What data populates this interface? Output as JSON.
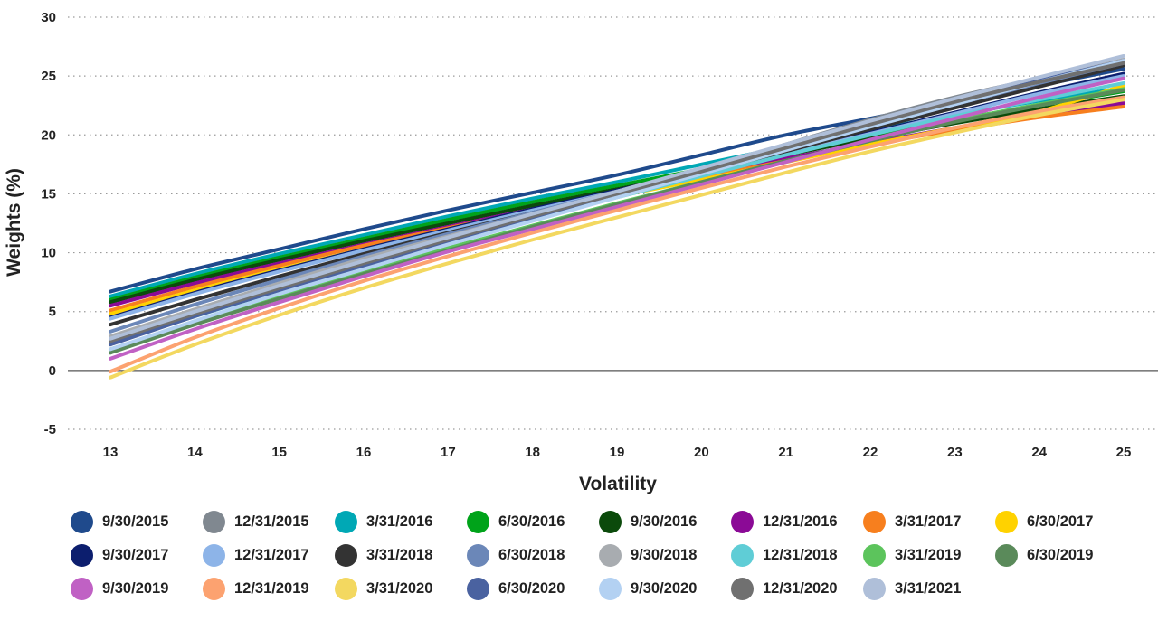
{
  "chart_data": {
    "type": "line",
    "xlabel": "Volatility",
    "ylabel": "Weights (%)",
    "xlim": [
      13,
      25
    ],
    "ylim": [
      -5,
      30
    ],
    "x_ticks": [
      13,
      14,
      15,
      16,
      17,
      18,
      19,
      20,
      21,
      22,
      23,
      24,
      25
    ],
    "y_ticks": [
      30,
      25,
      20,
      15,
      10,
      5,
      0,
      -5
    ],
    "grid": "horizontal-dotted",
    "legend_position": "bottom",
    "x": [
      13,
      14,
      15,
      16,
      17,
      18,
      19,
      20,
      21,
      22,
      23,
      24,
      25
    ],
    "series": [
      {
        "name": "9/30/2015",
        "color": "#1f4a8c",
        "values": [
          6.7,
          8.6,
          10.3,
          12.0,
          13.6,
          15.1,
          16.6,
          18.3,
          20.0,
          21.4,
          22.8,
          24.2,
          25.6
        ]
      },
      {
        "name": "12/31/2015",
        "color": "#808890",
        "values": [
          2.6,
          4.9,
          7.1,
          9.2,
          11.2,
          13.2,
          15.1,
          17.0,
          19.2,
          21.3,
          23.2,
          24.8,
          26.3
        ]
      },
      {
        "name": "3/31/2016",
        "color": "#00a8b5",
        "values": [
          6.3,
          8.2,
          9.9,
          11.5,
          13.1,
          14.6,
          16.0,
          17.5,
          19.0,
          20.4,
          21.7,
          22.9,
          24.0
        ]
      },
      {
        "name": "6/30/2016",
        "color": "#00a31a",
        "values": [
          6.0,
          7.9,
          9.6,
          11.2,
          12.8,
          14.3,
          15.7,
          17.1,
          18.6,
          20.0,
          21.3,
          22.5,
          23.7
        ]
      },
      {
        "name": "9/30/2016",
        "color": "#0b4a0b",
        "values": [
          5.8,
          7.7,
          9.4,
          11.0,
          12.5,
          14.0,
          15.4,
          16.8,
          18.3,
          19.7,
          21.0,
          22.2,
          23.3
        ]
      },
      {
        "name": "12/31/2016",
        "color": "#8b0a96",
        "values": [
          5.5,
          7.4,
          9.1,
          10.7,
          12.2,
          13.7,
          15.1,
          16.5,
          18.0,
          19.3,
          20.6,
          21.7,
          22.7
        ]
      },
      {
        "name": "3/31/2017",
        "color": "#f77f1e",
        "values": [
          5.1,
          7.1,
          8.9,
          10.6,
          12.1,
          13.6,
          15.0,
          16.4,
          17.8,
          19.2,
          20.4,
          21.5,
          22.4
        ]
      },
      {
        "name": "6/30/2017",
        "color": "#ffd200",
        "values": [
          4.8,
          6.8,
          8.6,
          10.3,
          11.9,
          13.4,
          14.8,
          16.2,
          17.7,
          19.2,
          20.6,
          22.0,
          24.2
        ]
      },
      {
        "name": "9/30/2017",
        "color": "#0c1e6e",
        "values": [
          4.5,
          6.6,
          8.5,
          10.3,
          12.0,
          13.7,
          15.3,
          16.9,
          18.5,
          20.2,
          21.9,
          23.6,
          25.2
        ]
      },
      {
        "name": "12/31/2017",
        "color": "#8db4e8",
        "values": [
          4.4,
          6.5,
          8.4,
          10.2,
          11.9,
          13.6,
          15.2,
          16.8,
          18.4,
          20.1,
          21.8,
          23.5,
          25.0
        ]
      },
      {
        "name": "3/31/2018",
        "color": "#333333",
        "values": [
          3.9,
          6.0,
          8.0,
          9.9,
          11.7,
          13.4,
          15.1,
          16.8,
          18.6,
          20.5,
          22.3,
          24.1,
          25.9
        ]
      },
      {
        "name": "6/30/2018",
        "color": "#6b87b8",
        "values": [
          3.3,
          5.6,
          7.7,
          9.7,
          11.6,
          13.4,
          15.2,
          17.0,
          18.9,
          20.8,
          22.6,
          24.4,
          26.1
        ]
      },
      {
        "name": "9/30/2018",
        "color": "#a8acb0",
        "values": [
          2.9,
          5.2,
          7.4,
          9.5,
          11.4,
          13.3,
          15.2,
          17.1,
          19.0,
          20.9,
          22.8,
          24.6,
          26.4
        ]
      },
      {
        "name": "12/31/2018",
        "color": "#5fcdd6",
        "values": [
          2.3,
          4.6,
          6.8,
          8.9,
          10.9,
          12.8,
          14.7,
          16.5,
          18.3,
          20.0,
          21.6,
          23.0,
          24.4
        ]
      },
      {
        "name": "3/31/2019",
        "color": "#5cc45c",
        "values": [
          1.8,
          4.1,
          6.3,
          8.4,
          10.4,
          12.3,
          14.2,
          16.0,
          17.8,
          19.5,
          21.2,
          22.6,
          23.9
        ]
      },
      {
        "name": "6/30/2019",
        "color": "#5a8a5a",
        "values": [
          1.5,
          3.9,
          6.1,
          8.2,
          10.2,
          12.2,
          14.1,
          16.0,
          17.8,
          19.5,
          21.1,
          22.5,
          23.8
        ]
      },
      {
        "name": "9/30/2019",
        "color": "#c061c4",
        "values": [
          1.0,
          3.5,
          5.8,
          8.0,
          10.1,
          12.0,
          13.9,
          15.8,
          17.7,
          19.6,
          21.4,
          23.2,
          24.8
        ]
      },
      {
        "name": "12/31/2019",
        "color": "#fca270",
        "values": [
          -0.1,
          2.8,
          5.3,
          7.6,
          9.7,
          11.7,
          13.6,
          15.5,
          17.3,
          19.0,
          20.6,
          22.0,
          23.2
        ]
      },
      {
        "name": "3/31/2020",
        "color": "#f3d860",
        "values": [
          -0.6,
          2.2,
          4.7,
          7.0,
          9.1,
          11.1,
          13.0,
          14.9,
          16.8,
          18.6,
          20.2,
          21.7,
          23.0
        ]
      },
      {
        "name": "6/30/2020",
        "color": "#4a62a0",
        "values": [
          2.2,
          4.6,
          6.8,
          8.9,
          10.9,
          12.9,
          14.8,
          16.8,
          18.8,
          20.8,
          22.7,
          24.6,
          26.3
        ]
      },
      {
        "name": "9/30/2020",
        "color": "#b3d1f2",
        "values": [
          1.8,
          4.2,
          6.5,
          8.6,
          10.7,
          12.7,
          14.7,
          16.7,
          18.7,
          20.7,
          22.6,
          24.5,
          26.3
        ]
      },
      {
        "name": "12/31/2020",
        "color": "#707070",
        "values": [
          2.5,
          4.8,
          7.0,
          9.1,
          11.1,
          13.1,
          15.0,
          16.9,
          18.9,
          20.9,
          22.8,
          24.5,
          26.1
        ]
      },
      {
        "name": "3/31/2021",
        "color": "#afbfd9",
        "values": [
          2.7,
          5.0,
          7.2,
          9.3,
          11.3,
          13.3,
          15.2,
          17.2,
          19.2,
          21.2,
          23.1,
          24.9,
          26.7
        ]
      }
    ]
  }
}
